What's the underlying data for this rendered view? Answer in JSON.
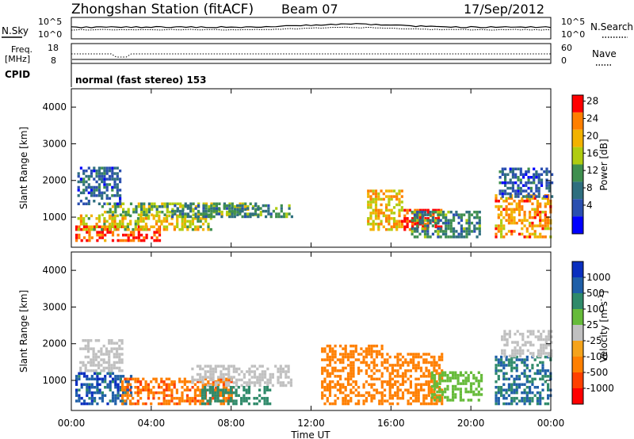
{
  "header": {
    "station": "Zhongshan Station (fitACF)",
    "beam": "Beam 07",
    "date": "17/Sep/2012"
  },
  "top_panels": {
    "nsky_label": "N.Sky",
    "nsky_ticks": [
      "10^5",
      "10^0"
    ],
    "nsearch_label": "N.Search",
    "nsearch_ticks": [
      "10^5",
      "10^0"
    ],
    "freq_label_line1": "Freq.",
    "freq_label_line2": "[MHz]",
    "freq_ticks": [
      "18",
      "8"
    ],
    "nave_label": "Nave",
    "nave_ticks": [
      "60",
      "0"
    ],
    "cpid_label": "CPID",
    "cpid_text": "normal (fast stereo) 153"
  },
  "colorbars": {
    "power": {
      "label": "Power [dB]",
      "ticks": [
        "28",
        "24",
        "20",
        "16",
        "12",
        "8",
        "4"
      ],
      "colors": [
        "#ff0000",
        "#ff7f00",
        "#f2b200",
        "#b0cc10",
        "#3f8f4f",
        "#2f6f7f",
        "#2a4fb0",
        "#0000ff"
      ]
    },
    "velocity": {
      "label_text": "Velocity [m s",
      "label_sup": "-1",
      "label_close": "]",
      "ticks": [
        "1000",
        "500",
        "100",
        "25",
        "-25",
        "-100",
        "-500",
        "-1000"
      ],
      "colors": [
        "#0a2fbf",
        "#1f5fa8",
        "#2f8a6a",
        "#66bb3a",
        "#c0c0c0",
        "#f5a31b",
        "#ff7f00",
        "#ff4000",
        "#ff0000"
      ]
    }
  },
  "chart_data": {
    "type": "heatmap",
    "xlabel": "Time UT",
    "ylabel": "Slant Range [km]",
    "x_ticks": [
      "00:00",
      "04:00",
      "08:00",
      "12:00",
      "16:00",
      "20:00",
      "00:00"
    ],
    "y_ticks": [
      "1000",
      "2000",
      "3000",
      "4000"
    ],
    "xlim_hours": [
      0,
      24
    ],
    "ylim_km": [
      180,
      4500
    ],
    "power_blobs": [
      {
        "t0": 0.2,
        "t1": 4.4,
        "r0": 400,
        "r1": 800,
        "level": 26
      },
      {
        "t0": 0.3,
        "t1": 7.0,
        "r0": 700,
        "r1": 1100,
        "level": 18
      },
      {
        "t0": 1.5,
        "t1": 9.5,
        "r0": 1100,
        "r1": 1450,
        "level": 14
      },
      {
        "t0": 5.0,
        "t1": 11.0,
        "r0": 1050,
        "r1": 1400,
        "level": 10
      },
      {
        "t0": 0.3,
        "t1": 2.5,
        "r0": 1400,
        "r1": 2400,
        "level": 6
      },
      {
        "t0": 14.8,
        "t1": 16.5,
        "r0": 700,
        "r1": 1800,
        "level": 20
      },
      {
        "t0": 16.5,
        "t1": 18.5,
        "r0": 700,
        "r1": 1300,
        "level": 27
      },
      {
        "t0": 17.0,
        "t1": 20.5,
        "r0": 500,
        "r1": 1200,
        "level": 10
      },
      {
        "t0": 21.2,
        "t1": 24.0,
        "r0": 500,
        "r1": 1700,
        "level": 22
      },
      {
        "t0": 21.4,
        "t1": 24.0,
        "r0": 1600,
        "r1": 2400,
        "level": 6
      }
    ],
    "velocity_blobs": [
      {
        "t0": 0.2,
        "t1": 3.0,
        "r0": 400,
        "r1": 1300,
        "vel": 800
      },
      {
        "t0": 0.4,
        "t1": 2.5,
        "r0": 1300,
        "r1": 2200,
        "vel": 10
      },
      {
        "t0": 2.5,
        "t1": 8.0,
        "r0": 400,
        "r1": 1100,
        "vel": -400
      },
      {
        "t0": 6.0,
        "t1": 11.0,
        "r0": 900,
        "r1": 1500,
        "vel": 10
      },
      {
        "t0": 6.5,
        "t1": 10.0,
        "r0": 400,
        "r1": 900,
        "vel": 200
      },
      {
        "t0": 12.5,
        "t1": 15.5,
        "r0": 400,
        "r1": 2000,
        "vel": -300
      },
      {
        "t0": 15.5,
        "t1": 18.5,
        "r0": 400,
        "r1": 1800,
        "vel": -200
      },
      {
        "t0": 18.0,
        "t1": 20.5,
        "r0": 500,
        "r1": 1300,
        "vel": 60
      },
      {
        "t0": 21.2,
        "t1": 24.0,
        "r0": 400,
        "r1": 1700,
        "vel": 500
      },
      {
        "t0": 21.5,
        "t1": 24.0,
        "r0": 1700,
        "r1": 2400,
        "vel": 10
      }
    ]
  }
}
